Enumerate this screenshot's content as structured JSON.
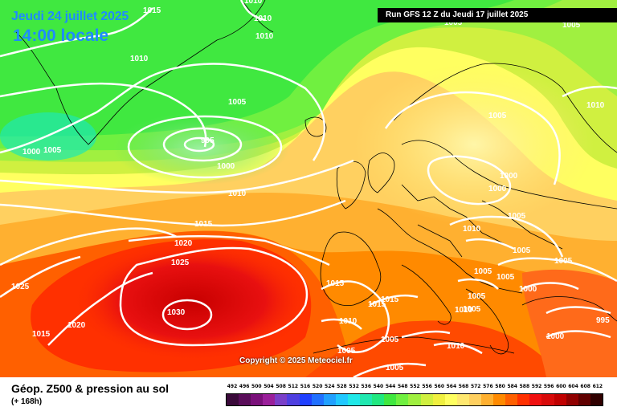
{
  "header": {
    "date_title": "Jeudi 24 juillet 2025",
    "time_title": "14:00 locale",
    "run_info": "Run GFS 12 Z du Jeudi 17 juillet 2025"
  },
  "copyright": "Copyright © 2025 Meteociel.fr",
  "footer": {
    "title": "Géop. Z500 & pression au sol",
    "subtitle": "(+ 168h)"
  },
  "colors": {
    "map_background": "#ff8a00",
    "isobar": "#ffffff",
    "coastline": "#000000",
    "title": "#1e8bff"
  },
  "scale": {
    "labels": [
      "492",
      "496",
      "500",
      "504",
      "508",
      "512",
      "516",
      "520",
      "524",
      "528",
      "532",
      "536",
      "540",
      "544",
      "548",
      "552",
      "556",
      "560",
      "564",
      "568",
      "572",
      "576",
      "580",
      "584",
      "588",
      "592",
      "596",
      "600",
      "604",
      "608",
      "612"
    ],
    "colors": [
      "#3a0a3a",
      "#5a0d5a",
      "#7a107a",
      "#9a1f9a",
      "#7a3fc8",
      "#4f3fe0",
      "#2040ff",
      "#2070ff",
      "#20a0ff",
      "#20c8ff",
      "#20e8e8",
      "#20e8b0",
      "#20e880",
      "#40e840",
      "#70f040",
      "#a0f040",
      "#d0f040",
      "#f0f040",
      "#ffff60",
      "#ffe870",
      "#ffd060",
      "#ffb030",
      "#ff8a00",
      "#ff6000",
      "#ff3000",
      "#f01010",
      "#d80a0a",
      "#c00000",
      "#900000",
      "#600000",
      "#300000"
    ]
  },
  "isobars": [
    {
      "label": "1015"
    },
    {
      "label": "1010"
    },
    {
      "label": "1010"
    },
    {
      "label": "1010"
    },
    {
      "label": "1010"
    },
    {
      "label": "1005"
    },
    {
      "label": "1000"
    },
    {
      "label": "1005"
    },
    {
      "label": "995"
    },
    {
      "label": "1000"
    },
    {
      "label": "1010"
    },
    {
      "label": "1015"
    },
    {
      "label": "1020"
    },
    {
      "label": "1025"
    },
    {
      "label": "1025"
    },
    {
      "label": "1030"
    },
    {
      "label": "1020"
    },
    {
      "label": "1015"
    },
    {
      "label": "1015"
    },
    {
      "label": "1015"
    },
    {
      "label": "1015"
    },
    {
      "label": "1010"
    },
    {
      "label": "1005"
    },
    {
      "label": "1005"
    },
    {
      "label": "1010"
    },
    {
      "label": "1005"
    },
    {
      "label": "1005"
    },
    {
      "label": "1010"
    },
    {
      "label": "1005"
    },
    {
      "label": "1000"
    },
    {
      "label": "1000"
    },
    {
      "label": "1005"
    },
    {
      "label": "1010"
    },
    {
      "label": "1005"
    },
    {
      "label": "1005"
    },
    {
      "label": "1005"
    },
    {
      "label": "1005"
    },
    {
      "label": "1000"
    },
    {
      "label": "1000"
    },
    {
      "label": "995"
    },
    {
      "label": "1005"
    },
    {
      "label": "1005"
    },
    {
      "label": "1010"
    },
    {
      "label": "1005"
    }
  ]
}
